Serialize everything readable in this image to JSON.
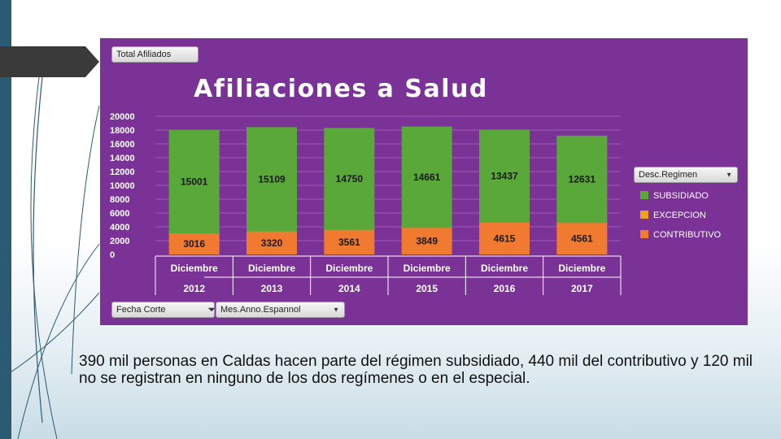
{
  "filters": {
    "total_button": "Total Afiliados",
    "fecha_corte": "Fecha Corte",
    "mes_anno": "Mes.Anno.Espannol"
  },
  "legend": {
    "header": "Desc.Regimen",
    "items": [
      {
        "label": "SUBSIDIADO",
        "color": "#5aa83a"
      },
      {
        "label": "EXCEPCION",
        "color": "#f0a020"
      },
      {
        "label": "CONTRIBUTIVO",
        "color": "#f07a30"
      }
    ]
  },
  "chart_data": {
    "type": "bar",
    "stacked": true,
    "title": "Afiliaciones a Salud",
    "categories": [
      {
        "month": "Diciembre",
        "year": "2012"
      },
      {
        "month": "Diciembre",
        "year": "2013"
      },
      {
        "month": "Diciembre",
        "year": "2014"
      },
      {
        "month": "Diciembre",
        "year": "2015"
      },
      {
        "month": "Diciembre",
        "year": "2016"
      },
      {
        "month": "Diciembre",
        "year": "2017"
      }
    ],
    "series": [
      {
        "name": "CONTRIBUTIVO",
        "color": "#f07a30",
        "values": [
          3016,
          3320,
          3561,
          3849,
          4615,
          4561
        ]
      },
      {
        "name": "EXCEPCION",
        "color": "#f0a020",
        "values": [
          0,
          0,
          0,
          0,
          0,
          0
        ]
      },
      {
        "name": "SUBSIDIADO",
        "color": "#5aa83a",
        "values": [
          15001,
          15109,
          14750,
          14661,
          13437,
          12631
        ]
      }
    ],
    "ylim": [
      0,
      20000
    ],
    "yticks": [
      "0",
      "2000",
      "4000",
      "6000",
      "8000",
      "10000",
      "12000",
      "14000",
      "16000",
      "18000",
      "20000"
    ],
    "grid": true,
    "legend_position": "right"
  },
  "caption": "390 mil personas en Caldas hacen parte del régimen subsidiado, 440 mil del contributivo y 120 mil no se registran en ninguno de los dos regímenes o en el especial."
}
